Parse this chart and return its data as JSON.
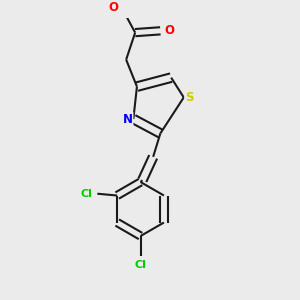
{
  "background_color": "#ebebeb",
  "bond_color": "#1a1a1a",
  "atom_colors": {
    "O": "#ff0000",
    "N": "#0000ff",
    "S": "#cccc00",
    "Cl": "#00cc00",
    "C": "#1a1a1a"
  },
  "figsize": [
    3.0,
    3.0
  ],
  "dpi": 100
}
